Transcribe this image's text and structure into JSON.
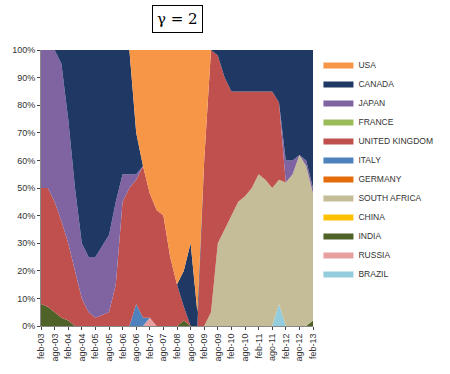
{
  "chart_data": {
    "type": "area",
    "title": "γ = 2",
    "stacked": true,
    "grid": false,
    "legend": "right",
    "categories": [
      "feb-03",
      null,
      "ago-03",
      null,
      "feb-04",
      null,
      "ago-04",
      null,
      "feb-05",
      null,
      "ago-05",
      null,
      "feb-06",
      null,
      "ago-06",
      null,
      "feb-07",
      null,
      "ago-07",
      null,
      "feb-08",
      null,
      "ago-08",
      null,
      "feb-09",
      null,
      "ago-09",
      null,
      "feb-10",
      null,
      "ago-10",
      null,
      "feb-11",
      null,
      "ago-11",
      null,
      "feb-12",
      null,
      "ago-12",
      null,
      "feb-13"
    ],
    "ylim": [
      0,
      100
    ],
    "yticks": [
      {
        "value": 0,
        "label": "0%"
      },
      {
        "value": 10,
        "label": "10%"
      },
      {
        "value": 20,
        "label": "20%"
      },
      {
        "value": 30,
        "label": "30%"
      },
      {
        "value": 40,
        "label": "40%"
      },
      {
        "value": 50,
        "label": "50%"
      },
      {
        "value": 60,
        "label": "60%"
      },
      {
        "value": 70,
        "label": "70%"
      },
      {
        "value": 80,
        "label": "80%"
      },
      {
        "value": 90,
        "label": "90%"
      },
      {
        "value": 100,
        "label": "100%"
      }
    ],
    "series": [
      {
        "name": "USA",
        "color": "#f79646",
        "values": [
          0,
          0,
          0,
          0,
          0,
          0,
          0,
          0,
          0,
          0,
          0,
          0,
          0,
          0,
          30,
          42,
          52,
          58,
          60,
          75,
          85,
          80,
          70,
          95,
          40,
          0,
          0,
          0,
          0,
          0,
          0,
          0,
          0,
          0,
          0,
          0,
          0,
          0,
          0,
          0,
          0
        ]
      },
      {
        "name": "CANADA",
        "color": "#1f3864",
        "values": [
          0,
          0,
          0,
          5,
          25,
          50,
          70,
          75,
          75,
          71,
          67,
          55,
          45,
          45,
          15,
          0,
          0,
          0,
          0,
          0,
          0,
          13,
          30,
          5,
          0,
          0,
          2,
          10,
          15,
          15,
          15,
          15,
          15,
          15,
          15,
          19,
          40,
          40,
          38,
          40,
          50
        ]
      },
      {
        "name": "JAPAN",
        "color": "#8064a2",
        "values": [
          50,
          50,
          55,
          57,
          45,
          30,
          20,
          20,
          22,
          25,
          28,
          30,
          10,
          5,
          2,
          0,
          0,
          0,
          0,
          0,
          0,
          0,
          0,
          0,
          0,
          0,
          0,
          0,
          0,
          0,
          0,
          0,
          0,
          0,
          0,
          0,
          8,
          5,
          0,
          2,
          2
        ]
      },
      {
        "name": "FRANCE",
        "color": "#9bbb59",
        "values": [
          0,
          0,
          0,
          0,
          0,
          0,
          0,
          0,
          0,
          0,
          0,
          0,
          0,
          0,
          0,
          0,
          0,
          0,
          0,
          0,
          0,
          0,
          0,
          0,
          0,
          0,
          0,
          0,
          0,
          0,
          0,
          0,
          0,
          0,
          0,
          0,
          0,
          0,
          0,
          0,
          0
        ]
      },
      {
        "name": "UNITED KINGDOM",
        "color": "#c0504d",
        "values": [
          42,
          43,
          40,
          35,
          28,
          20,
          10,
          5,
          3,
          4,
          5,
          15,
          45,
          50,
          45,
          55,
          45,
          42,
          40,
          25,
          15,
          5,
          0,
          0,
          60,
          95,
          68,
          55,
          45,
          40,
          38,
          35,
          30,
          32,
          35,
          28,
          0,
          0,
          0,
          0,
          0
        ]
      },
      {
        "name": "ITALY",
        "color": "#4f81bd",
        "values": [
          0,
          0,
          0,
          0,
          0,
          0,
          0,
          0,
          0,
          0,
          0,
          0,
          0,
          0,
          8,
          3,
          0,
          0,
          0,
          0,
          0,
          0,
          0,
          0,
          0,
          0,
          0,
          0,
          0,
          0,
          0,
          0,
          0,
          0,
          0,
          0,
          0,
          0,
          0,
          0,
          0
        ]
      },
      {
        "name": "GERMANY",
        "color": "#e46c0a",
        "values": [
          0,
          0,
          0,
          0,
          0,
          0,
          0,
          0,
          0,
          0,
          0,
          0,
          0,
          0,
          0,
          0,
          0,
          0,
          0,
          0,
          0,
          0,
          0,
          0,
          0,
          0,
          0,
          0,
          0,
          0,
          0,
          0,
          0,
          0,
          0,
          0,
          0,
          0,
          0,
          0,
          0
        ]
      },
      {
        "name": "SOUTH AFRICA",
        "color": "#c4bd97",
        "values": [
          0,
          0,
          0,
          0,
          0,
          0,
          0,
          0,
          0,
          0,
          0,
          0,
          0,
          0,
          0,
          0,
          0,
          0,
          0,
          0,
          0,
          0,
          0,
          0,
          0,
          5,
          30,
          35,
          40,
          45,
          47,
          50,
          55,
          53,
          50,
          45,
          52,
          55,
          62,
          58,
          46
        ]
      },
      {
        "name": "CHINA",
        "color": "#ffc000",
        "values": [
          0,
          0,
          0,
          0,
          0,
          0,
          0,
          0,
          0,
          0,
          0,
          0,
          0,
          0,
          0,
          0,
          0,
          0,
          0,
          0,
          0,
          0,
          0,
          0,
          0,
          0,
          0,
          0,
          0,
          0,
          0,
          0,
          0,
          0,
          0,
          0,
          0,
          0,
          0,
          0,
          0
        ]
      },
      {
        "name": "INDIA",
        "color": "#4f6228",
        "values": [
          8,
          7,
          5,
          3,
          2,
          0,
          0,
          0,
          0,
          0,
          0,
          0,
          0,
          0,
          0,
          0,
          0,
          0,
          0,
          0,
          0,
          2,
          0,
          0,
          0,
          0,
          0,
          0,
          0,
          0,
          0,
          0,
          0,
          0,
          0,
          0,
          0,
          0,
          0,
          0,
          2
        ]
      },
      {
        "name": "RUSSIA",
        "color": "#e6a0a0",
        "values": [
          0,
          0,
          0,
          0,
          0,
          0,
          0,
          0,
          0,
          0,
          0,
          0,
          0,
          0,
          0,
          0,
          3,
          0,
          0,
          0,
          0,
          0,
          0,
          0,
          0,
          0,
          0,
          0,
          0,
          0,
          0,
          0,
          0,
          0,
          0,
          0,
          0,
          0,
          0,
          0,
          0
        ]
      },
      {
        "name": "BRAZIL",
        "color": "#93cddd",
        "values": [
          0,
          0,
          0,
          0,
          0,
          0,
          0,
          0,
          0,
          0,
          0,
          0,
          0,
          0,
          0,
          0,
          0,
          0,
          0,
          0,
          0,
          0,
          0,
          0,
          0,
          0,
          0,
          0,
          0,
          0,
          0,
          0,
          0,
          0,
          0,
          8,
          0,
          0,
          0,
          0,
          0
        ]
      }
    ]
  }
}
